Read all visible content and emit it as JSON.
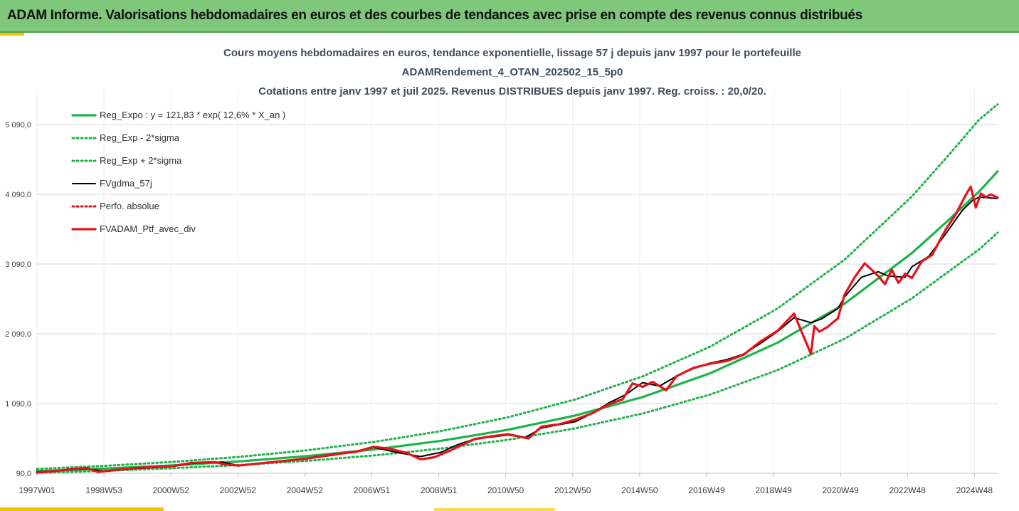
{
  "header": {
    "title": "ADAM Informe. Valorisations hebdomadaires en euros et des courbes de tendances avec prise en compte des revenus connus distribués"
  },
  "colors": {
    "trend": "#1fb24a",
    "smoothed": "#000000",
    "portfolio": "#e8101a",
    "grid": "#d9d9d9",
    "banner": "#7fc77b"
  },
  "chart_data": {
    "type": "line",
    "title": [
      "Cours moyens hebdomadaires  en euros, tendance exponentielle, lissage 57 j depuis janv 1997 pour le portefeuille",
      "ADAMRendement_4_OTAN_202502_15_5p0",
      "Cotations  entre janv 1997 et juil 2025. Revenus DISTRIBUES depuis janv 1997. Reg. croiss. : 20,0/20."
    ],
    "xlabel": "",
    "ylabel": "",
    "xlim": [
      1997.0,
      2025.55
    ],
    "ylim": [
      90,
      5590
    ],
    "y_ticks": [
      90,
      1090,
      2090,
      3090,
      4090,
      5090
    ],
    "y_tick_labels": [
      "90,0",
      "1 090,0",
      "2 090,0",
      "3 090,0",
      "4 090,0",
      "5 090,0"
    ],
    "x_ticks": [
      1997.0,
      1998.99,
      2000.98,
      2002.97,
      2004.96,
      2006.95,
      2008.94,
      2010.93,
      2012.92,
      2014.91,
      2016.9,
      2018.89,
      2020.88,
      2022.87,
      2024.86
    ],
    "x_tick_labels": [
      "1997W01",
      "1998W53",
      "2000W52",
      "2002W52",
      "2004W52",
      "2006W51",
      "2008W51",
      "2010W50",
      "2012W50",
      "2014W50",
      "2016W49",
      "2018W49",
      "2020W49",
      "2022W48",
      "2024W48"
    ],
    "grid": "horizontal",
    "legend_position": "top-left",
    "series": [
      {
        "name": "Reg_Expo : y = 121,83 * exp( 12,6% *  X_an )",
        "style": "solid-thick",
        "color": "#1fb24a",
        "x": [
          1997,
          1999,
          2001,
          2003,
          2005,
          2007,
          2009,
          2011,
          2013,
          2015,
          2017,
          2019,
          2021,
          2023,
          2024,
          2025,
          2025.55
        ],
        "y": [
          122,
          157,
          202,
          260,
          335,
          431,
          555,
          714,
          919,
          1183,
          1523,
          1960,
          2522,
          3246,
          3680,
          4130,
          4420
        ]
      },
      {
        "name": "Reg_Exp - 2*sigma",
        "style": "dotted",
        "color": "#1fb24a",
        "x": [
          1997,
          1999,
          2001,
          2003,
          2005,
          2007,
          2009,
          2011,
          2013,
          2015,
          2017,
          2019,
          2021,
          2023,
          2024,
          2025,
          2025.55
        ],
        "y": [
          97,
          126,
          162,
          208,
          268,
          345,
          444,
          571,
          735,
          947,
          1218,
          1568,
          2018,
          2597,
          2950,
          3300,
          3540
        ]
      },
      {
        "name": "Reg_Exp + 2*sigma",
        "style": "dotted",
        "color": "#1fb24a",
        "x": [
          1997,
          1999,
          2001,
          2003,
          2005,
          2007,
          2009,
          2011,
          2013,
          2015,
          2017,
          2019,
          2021,
          2023,
          2024,
          2025,
          2025.55
        ],
        "y": [
          152,
          196,
          252,
          325,
          419,
          539,
          694,
          893,
          1149,
          1479,
          1904,
          2450,
          3153,
          4058,
          4600,
          5160,
          5380
        ]
      },
      {
        "name": "FVgdma_57j",
        "style": "solid",
        "color": "#000000",
        "x": [
          1997,
          1998,
          1998.5,
          1999,
          2000,
          2001,
          2001.6,
          2002.5,
          2003,
          2004,
          2005,
          2005.8,
          2006.5,
          2007,
          2007.8,
          2008.4,
          2009,
          2009.5,
          2010,
          2011,
          2011.5,
          2012,
          2013,
          2013.5,
          2014,
          2014.5,
          2015,
          2015.5,
          2016,
          2016.5,
          2017,
          2017.5,
          2018,
          2018.5,
          2019,
          2019.5,
          2020,
          2020.3,
          2020.8,
          2021,
          2021.5,
          2022,
          2022.3,
          2022.8,
          2023,
          2023.5,
          2024,
          2024.5,
          2024.8,
          2025,
          2025.55
        ],
        "y": [
          110,
          140,
          155,
          120,
          160,
          185,
          230,
          250,
          200,
          245,
          295,
          350,
          400,
          460,
          380,
          330,
          390,
          500,
          580,
          640,
          600,
          740,
          830,
          950,
          1100,
          1220,
          1390,
          1340,
          1480,
          1590,
          1670,
          1720,
          1800,
          1950,
          2120,
          2320,
          2250,
          2300,
          2450,
          2620,
          2900,
          2980,
          2920,
          2900,
          3050,
          3200,
          3520,
          3860,
          4000,
          4050,
          4030
        ]
      },
      {
        "name": "Perfo. absolue",
        "style": "dotted",
        "color": "#e8101a",
        "x": [],
        "y": []
      },
      {
        "name": "FVADAM_Ptf_avec_div",
        "style": "solid-thick",
        "color": "#e8101a",
        "x": [
          1997,
          1997.8,
          1998,
          1998.5,
          1998.8,
          1999.2,
          2000,
          2001,
          2001.6,
          2002.3,
          2002.6,
          2003,
          2004,
          2005,
          2005.8,
          2006.5,
          2007,
          2007.5,
          2008,
          2008.4,
          2008.8,
          2009.3,
          2010,
          2010.5,
          2011,
          2011.6,
          2012,
          2012.5,
          2013,
          2013.5,
          2014,
          2014.4,
          2014.7,
          2015,
          2015.3,
          2015.7,
          2016,
          2016.5,
          2017,
          2017.5,
          2018,
          2018.5,
          2019,
          2019.5,
          2020,
          2020.1,
          2020.25,
          2020.5,
          2020.8,
          2021,
          2021.3,
          2021.6,
          2022,
          2022.2,
          2022.4,
          2022.6,
          2022.8,
          2023,
          2023.3,
          2023.6,
          2024,
          2024.3,
          2024.6,
          2024.75,
          2024.9,
          2025.05,
          2025.2,
          2025.35,
          2025.55
        ],
        "y": [
          100,
          135,
          150,
          165,
          110,
          130,
          170,
          190,
          240,
          250,
          215,
          200,
          250,
          300,
          360,
          400,
          470,
          440,
          380,
          290,
          320,
          420,
          580,
          620,
          650,
          590,
          760,
          790,
          860,
          950,
          1080,
          1150,
          1380,
          1330,
          1400,
          1280,
          1480,
          1600,
          1660,
          1700,
          1790,
          1980,
          2130,
          2380,
          1800,
          2200,
          2120,
          2190,
          2310,
          2650,
          2900,
          3100,
          2920,
          2800,
          3010,
          2820,
          2950,
          2890,
          3130,
          3220,
          3580,
          3800,
          4080,
          4200,
          3900,
          4100,
          4050,
          4090,
          4040
        ]
      }
    ]
  }
}
